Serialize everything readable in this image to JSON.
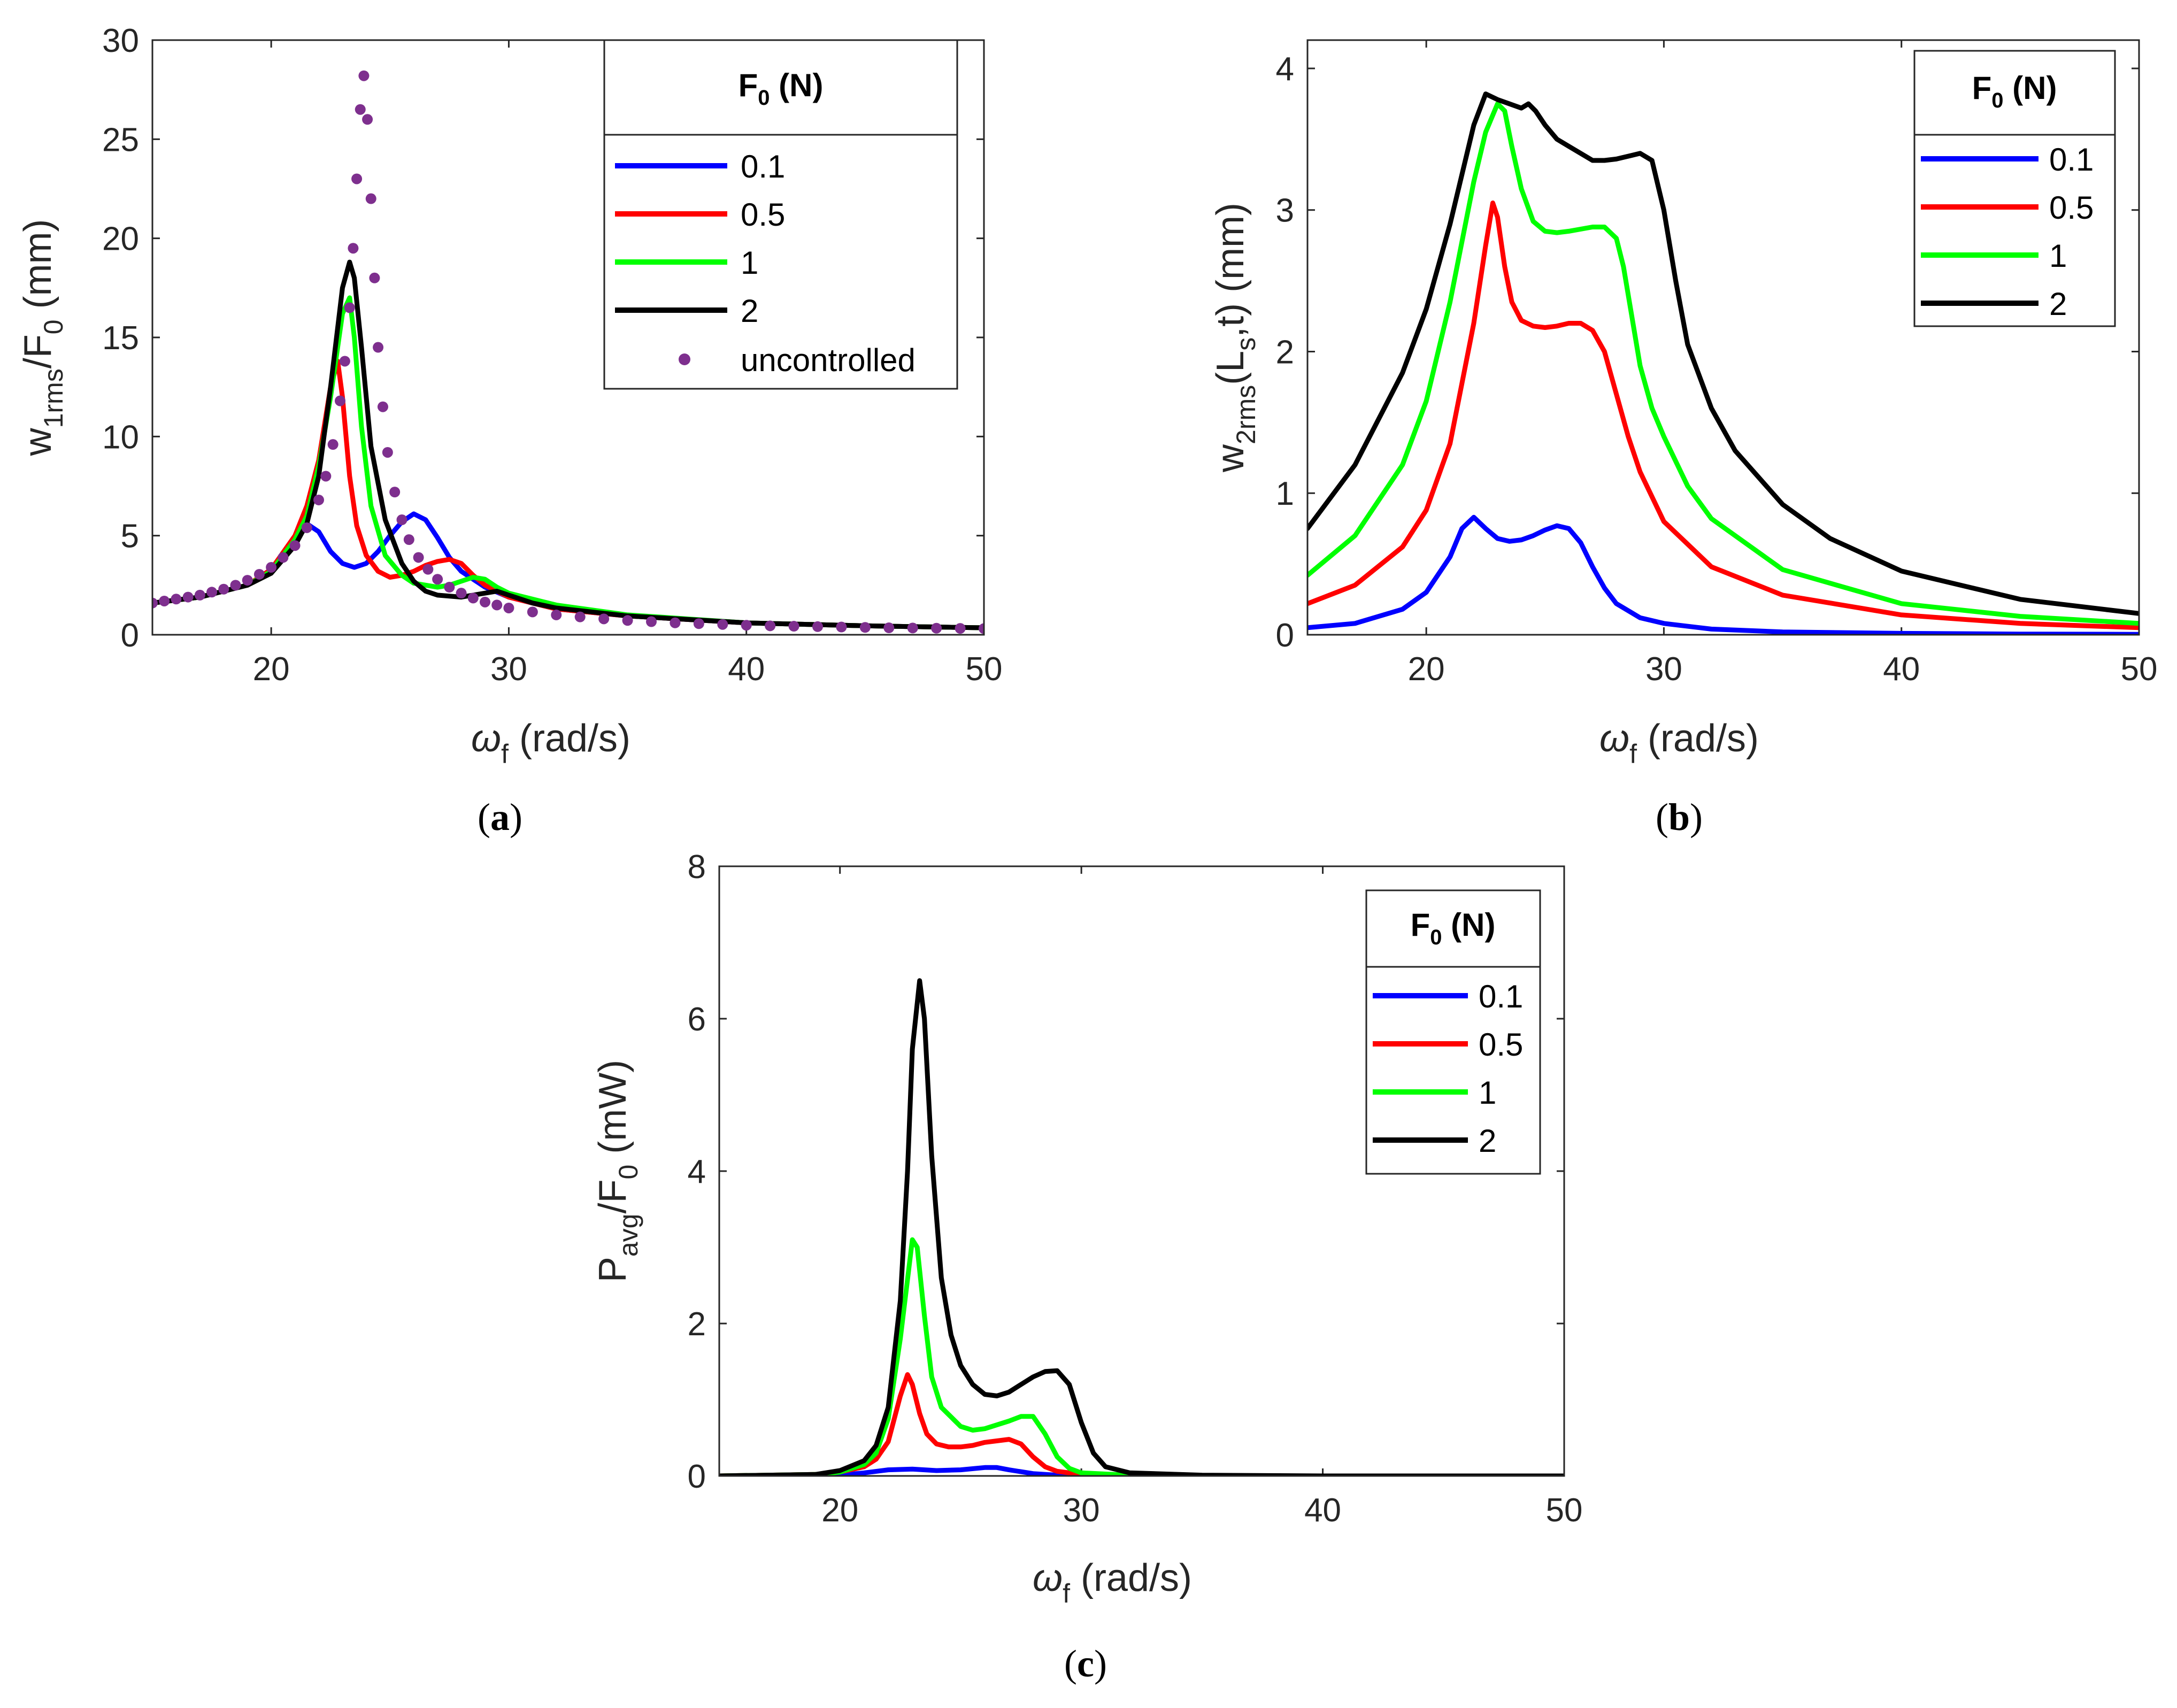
{
  "chart_data": [
    {
      "id": "a",
      "type": "line",
      "caption_letter": "a",
      "xlabel": "ω",
      "xlabel_sub": "f",
      "xlabel_unit": " (rad/s)",
      "ylabel": [
        {
          "t": "w",
          "sub": false
        },
        {
          "t": "1rms",
          "sub": true
        },
        {
          "t": "/F",
          "sub": false
        },
        {
          "t": "0",
          "sub": true
        },
        {
          "t": " (mm)",
          "sub": false
        }
      ],
      "xlim": [
        15,
        50
      ],
      "ylim": [
        0,
        30
      ],
      "xticks": [
        20,
        30,
        40,
        50
      ],
      "yticks": [
        0,
        5,
        10,
        15,
        20,
        25,
        30
      ],
      "legend_title": "F",
      "legend_title_sub": "0",
      "legend_title_unit": " (N)",
      "series": [
        {
          "name": "0.1",
          "color": "#0000ff",
          "style": "line",
          "x": [
            15,
            17,
            19,
            20,
            21,
            21.5,
            22,
            22.5,
            23,
            23.5,
            24,
            24.5,
            25,
            25.5,
            26,
            26.5,
            27,
            27.5,
            28,
            29,
            30,
            32,
            35,
            40,
            45,
            50
          ],
          "y": [
            1.6,
            1.9,
            2.5,
            3.2,
            4.6,
            5.6,
            5.2,
            4.2,
            3.6,
            3.4,
            3.6,
            4.2,
            5.0,
            5.7,
            6.1,
            5.8,
            4.9,
            3.9,
            3.2,
            2.4,
            1.9,
            1.3,
            0.95,
            0.6,
            0.45,
            0.35
          ]
        },
        {
          "name": "0.5",
          "color": "#ff0000",
          "style": "line",
          "x": [
            15,
            17,
            19,
            20,
            21,
            21.5,
            22,
            22.5,
            22.8,
            23,
            23.3,
            23.6,
            24,
            24.5,
            25,
            25.5,
            26,
            26.5,
            27,
            27.5,
            28,
            28.5,
            29,
            30,
            32,
            35,
            40,
            45,
            50
          ],
          "y": [
            1.6,
            1.9,
            2.5,
            3.3,
            5.0,
            6.5,
            8.8,
            12.5,
            13.8,
            12.0,
            8.0,
            5.5,
            4.0,
            3.2,
            2.9,
            3.0,
            3.2,
            3.5,
            3.7,
            3.8,
            3.6,
            3.0,
            2.5,
            1.9,
            1.3,
            0.95,
            0.6,
            0.45,
            0.35
          ]
        },
        {
          "name": "1",
          "color": "#00ff00",
          "style": "line",
          "x": [
            15,
            17,
            19,
            20,
            21,
            21.5,
            22,
            22.5,
            23,
            23.3,
            23.5,
            23.8,
            24.2,
            24.8,
            25.5,
            26,
            27,
            27.5,
            28,
            28.5,
            29,
            29.5,
            30,
            32,
            35,
            40,
            45,
            50
          ],
          "y": [
            1.6,
            1.9,
            2.5,
            3.2,
            4.8,
            6.0,
            8.5,
            12.0,
            16.2,
            17.0,
            15.0,
            10.5,
            6.5,
            4.0,
            3.0,
            2.6,
            2.4,
            2.5,
            2.7,
            2.9,
            2.8,
            2.4,
            2.1,
            1.5,
            1.0,
            0.6,
            0.45,
            0.35
          ]
        },
        {
          "name": "2",
          "color": "#000000",
          "style": "line",
          "x": [
            15,
            17,
            19,
            20,
            21,
            21.5,
            22,
            22.5,
            23,
            23.3,
            23.5,
            23.8,
            24.2,
            24.8,
            25.5,
            26,
            26.5,
            27,
            28,
            29,
            29.5,
            30,
            31,
            32,
            35,
            40,
            45,
            50
          ],
          "y": [
            1.6,
            1.9,
            2.5,
            3.1,
            4.5,
            5.6,
            8.0,
            12.5,
            17.5,
            18.8,
            18.0,
            14.5,
            9.5,
            5.8,
            3.6,
            2.7,
            2.2,
            2.0,
            1.9,
            2.1,
            2.2,
            2.0,
            1.6,
            1.35,
            0.95,
            0.6,
            0.45,
            0.35
          ]
        },
        {
          "name": "uncontrolled",
          "color": "#7e2f8e",
          "style": "dots",
          "x": [
            15,
            15.5,
            16,
            16.5,
            17,
            17.5,
            18,
            18.5,
            19,
            19.5,
            20,
            20.5,
            21,
            21.5,
            22,
            22.3,
            22.6,
            22.9,
            23.1,
            23.3,
            23.45,
            23.6,
            23.75,
            23.9,
            24.05,
            24.2,
            24.35,
            24.5,
            24.7,
            24.9,
            25.2,
            25.5,
            25.8,
            26.2,
            26.6,
            27,
            27.5,
            28,
            28.5,
            29,
            29.5,
            30,
            31,
            32,
            33,
            34,
            35,
            36,
            37,
            38,
            39,
            40,
            41,
            42,
            43,
            44,
            45,
            46,
            47,
            48,
            49,
            50
          ],
          "y": [
            1.6,
            1.7,
            1.8,
            1.9,
            2.0,
            2.15,
            2.3,
            2.5,
            2.75,
            3.05,
            3.4,
            3.9,
            4.5,
            5.4,
            6.8,
            8.0,
            9.6,
            11.8,
            13.8,
            16.5,
            19.5,
            23.0,
            26.5,
            28.2,
            26.0,
            22.0,
            18.0,
            14.5,
            11.5,
            9.2,
            7.2,
            5.8,
            4.8,
            3.9,
            3.3,
            2.8,
            2.4,
            2.1,
            1.85,
            1.65,
            1.5,
            1.35,
            1.15,
            1.0,
            0.9,
            0.8,
            0.72,
            0.66,
            0.6,
            0.56,
            0.52,
            0.48,
            0.45,
            0.43,
            0.41,
            0.39,
            0.37,
            0.35,
            0.34,
            0.33,
            0.32,
            0.31
          ]
        }
      ]
    },
    {
      "id": "b",
      "type": "line",
      "caption_letter": "b",
      "xlabel": "ω",
      "xlabel_sub": "f",
      "xlabel_unit": " (rad/s)",
      "ylabel": [
        {
          "t": "w",
          "sub": false
        },
        {
          "t": "2rms",
          "sub": true
        },
        {
          "t": "(L",
          "sub": false
        },
        {
          "t": "s",
          "sub": true
        },
        {
          "t": ",t) (mm)",
          "sub": false
        }
      ],
      "xlim": [
        15,
        50
      ],
      "ylim": [
        0,
        4.2
      ],
      "xticks": [
        20,
        30,
        40,
        50
      ],
      "yticks": [
        0,
        1,
        2,
        3,
        4
      ],
      "legend_title": "F",
      "legend_title_sub": "0",
      "legend_title_unit": " (N)",
      "series": [
        {
          "name": "0.1",
          "color": "#0000ff",
          "style": "line",
          "x": [
            15,
            17,
            19,
            20,
            21,
            21.5,
            22,
            22.5,
            23,
            23.5,
            24,
            24.5,
            25,
            25.5,
            26,
            26.5,
            27,
            27.5,
            28,
            29,
            30,
            32,
            35,
            40,
            45,
            50
          ],
          "y": [
            0.05,
            0.08,
            0.18,
            0.3,
            0.55,
            0.75,
            0.83,
            0.75,
            0.68,
            0.66,
            0.67,
            0.7,
            0.74,
            0.77,
            0.75,
            0.65,
            0.48,
            0.33,
            0.22,
            0.12,
            0.08,
            0.04,
            0.02,
            0.01,
            0.005,
            0.003
          ]
        },
        {
          "name": "0.5",
          "color": "#ff0000",
          "style": "line",
          "x": [
            15,
            17,
            19,
            20,
            21,
            22,
            22.5,
            22.8,
            23,
            23.3,
            23.6,
            24,
            24.5,
            25,
            25.5,
            26,
            26.5,
            27,
            27.5,
            28,
            28.5,
            29,
            30,
            32,
            35,
            40,
            45,
            50
          ],
          "y": [
            0.22,
            0.35,
            0.62,
            0.88,
            1.35,
            2.2,
            2.75,
            3.05,
            2.95,
            2.6,
            2.35,
            2.22,
            2.18,
            2.17,
            2.18,
            2.2,
            2.2,
            2.15,
            2.0,
            1.7,
            1.4,
            1.15,
            0.8,
            0.48,
            0.28,
            0.14,
            0.08,
            0.05
          ]
        },
        {
          "name": "1",
          "color": "#00ff00",
          "style": "line",
          "x": [
            15,
            17,
            19,
            20,
            21,
            22,
            22.5,
            23,
            23.3,
            23.6,
            24,
            24.5,
            25,
            25.5,
            26,
            27,
            27.5,
            28,
            28.3,
            28.7,
            29,
            29.5,
            30,
            31,
            32,
            35,
            40,
            45,
            50
          ],
          "y": [
            0.42,
            0.7,
            1.2,
            1.65,
            2.35,
            3.2,
            3.55,
            3.75,
            3.7,
            3.45,
            3.15,
            2.92,
            2.85,
            2.84,
            2.85,
            2.88,
            2.88,
            2.8,
            2.6,
            2.2,
            1.9,
            1.6,
            1.4,
            1.05,
            0.82,
            0.46,
            0.22,
            0.13,
            0.08
          ]
        },
        {
          "name": "2",
          "color": "#000000",
          "style": "line",
          "x": [
            15,
            17,
            19,
            20,
            21,
            22,
            22.5,
            23,
            23.5,
            24,
            24.3,
            24.6,
            25,
            25.5,
            26,
            27,
            27.5,
            28,
            28.5,
            29,
            29.5,
            30,
            30.5,
            31,
            32,
            33,
            35,
            37,
            40,
            45,
            50
          ],
          "y": [
            0.75,
            1.2,
            1.85,
            2.3,
            2.9,
            3.6,
            3.82,
            3.78,
            3.75,
            3.72,
            3.75,
            3.7,
            3.6,
            3.5,
            3.45,
            3.35,
            3.35,
            3.36,
            3.38,
            3.4,
            3.35,
            3.0,
            2.5,
            2.05,
            1.6,
            1.3,
            0.92,
            0.68,
            0.45,
            0.25,
            0.15
          ]
        }
      ]
    },
    {
      "id": "c",
      "type": "line",
      "caption_letter": "c",
      "xlabel": "ω",
      "xlabel_sub": "f",
      "xlabel_unit": " (rad/s)",
      "ylabel": [
        {
          "t": "P",
          "sub": false
        },
        {
          "t": "avg",
          "sub": true
        },
        {
          "t": "/F",
          "sub": false
        },
        {
          "t": "0",
          "sub": true
        },
        {
          "t": " (mW)",
          "sub": false
        }
      ],
      "xlim": [
        15,
        50
      ],
      "ylim": [
        0,
        8
      ],
      "xticks": [
        20,
        30,
        40,
        50
      ],
      "yticks": [
        0,
        2,
        4,
        6,
        8
      ],
      "legend_title": "F",
      "legend_title_sub": "0",
      "legend_title_unit": " (N)",
      "series": [
        {
          "name": "0.1",
          "color": "#0000ff",
          "style": "line",
          "x": [
            15,
            19,
            20,
            21,
            22,
            23,
            24,
            25,
            26,
            26.5,
            27,
            28,
            29,
            30,
            35,
            40,
            50
          ],
          "y": [
            0.0,
            0.0,
            0.01,
            0.04,
            0.08,
            0.09,
            0.07,
            0.08,
            0.11,
            0.11,
            0.08,
            0.03,
            0.01,
            0.0,
            0.0,
            0.0,
            0.0
          ]
        },
        {
          "name": "0.5",
          "color": "#ff0000",
          "style": "line",
          "x": [
            15,
            19,
            20,
            21,
            21.5,
            22,
            22.5,
            22.8,
            23,
            23.3,
            23.6,
            24,
            24.5,
            25,
            25.5,
            26,
            27,
            27.5,
            28,
            28.5,
            29,
            30,
            32,
            35,
            40,
            50
          ],
          "y": [
            0.0,
            0.02,
            0.05,
            0.12,
            0.22,
            0.45,
            1.05,
            1.33,
            1.2,
            0.82,
            0.55,
            0.42,
            0.38,
            0.38,
            0.4,
            0.44,
            0.48,
            0.42,
            0.25,
            0.12,
            0.06,
            0.02,
            0.01,
            0.0,
            0.0,
            0.0
          ]
        },
        {
          "name": "1",
          "color": "#00ff00",
          "style": "line",
          "x": [
            15,
            19,
            20,
            21,
            21.5,
            22,
            22.5,
            23,
            23.2,
            23.5,
            23.8,
            24.2,
            25,
            25.5,
            26,
            27,
            27.5,
            28,
            28.5,
            29,
            29.5,
            30,
            32,
            35,
            40,
            50
          ],
          "y": [
            0.0,
            0.02,
            0.05,
            0.15,
            0.3,
            0.75,
            1.8,
            3.1,
            3.0,
            2.1,
            1.3,
            0.9,
            0.65,
            0.6,
            0.62,
            0.72,
            0.78,
            0.78,
            0.55,
            0.25,
            0.1,
            0.04,
            0.01,
            0.0,
            0.0,
            0.0
          ]
        },
        {
          "name": "2",
          "color": "#000000",
          "style": "line",
          "x": [
            15,
            19,
            20,
            21,
            21.5,
            22,
            22.5,
            22.8,
            23,
            23.3,
            23.5,
            23.8,
            24.2,
            24.6,
            25,
            25.5,
            26,
            26.5,
            27,
            27.5,
            28,
            28.5,
            29,
            29.5,
            30,
            30.5,
            31,
            32,
            35,
            40,
            50
          ],
          "y": [
            0.0,
            0.02,
            0.07,
            0.2,
            0.4,
            0.9,
            2.3,
            4.0,
            5.6,
            6.5,
            6.0,
            4.2,
            2.6,
            1.85,
            1.45,
            1.2,
            1.07,
            1.05,
            1.1,
            1.2,
            1.3,
            1.37,
            1.38,
            1.2,
            0.7,
            0.3,
            0.12,
            0.04,
            0.01,
            0.0,
            0.0
          ]
        }
      ]
    }
  ]
}
